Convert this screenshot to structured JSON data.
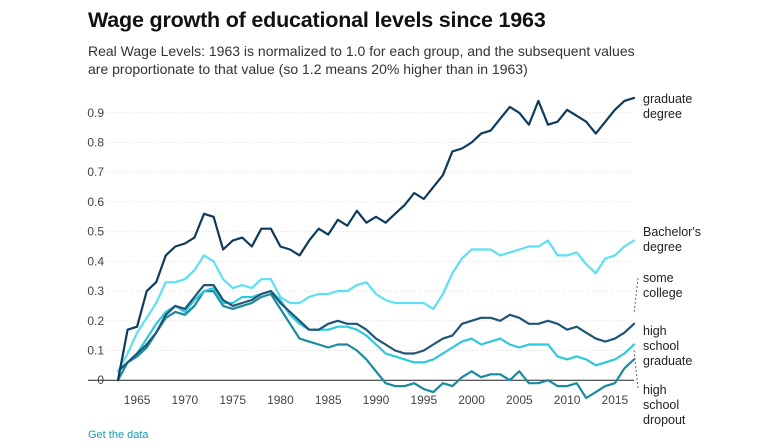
{
  "title": "Wage growth of educational levels since 1963",
  "subtitle": "Real Wage Levels: 1963 is normalized to 1.0 for each group, and the subsequent values are proportionate to that value (so 1.2 means 20% higher than in 1963)",
  "link_text": "Get the data",
  "chart_data": {
    "type": "line",
    "title": "Wage growth of educational levels since 1963",
    "xlabel": "",
    "ylabel": "",
    "xlim": [
      1963,
      2017
    ],
    "ylim": [
      -0.07,
      0.97
    ],
    "xticks": [
      1965,
      1970,
      1975,
      1980,
      1985,
      1990,
      1995,
      2000,
      2005,
      2010,
      2015
    ],
    "yticks": [
      0,
      0.1,
      0.2,
      0.3,
      0.4,
      0.5,
      0.6,
      0.7,
      0.8,
      0.9
    ],
    "ytick_labels": [
      "0",
      "0.1",
      "0.2",
      "0.3",
      "0.4",
      "0.5",
      "0.6",
      "0.7",
      "0.8",
      "0.9"
    ],
    "grid": true,
    "x": [
      1963,
      1964,
      1965,
      1966,
      1967,
      1968,
      1969,
      1970,
      1971,
      1972,
      1973,
      1974,
      1975,
      1976,
      1977,
      1978,
      1979,
      1980,
      1981,
      1982,
      1983,
      1984,
      1985,
      1986,
      1987,
      1988,
      1989,
      1990,
      1991,
      1992,
      1993,
      1994,
      1995,
      1996,
      1997,
      1998,
      1999,
      2000,
      2001,
      2002,
      2003,
      2004,
      2005,
      2006,
      2007,
      2008,
      2009,
      2010,
      2011,
      2012,
      2013,
      2014,
      2015,
      2016,
      2017
    ],
    "series": [
      {
        "name": "graduate degree",
        "label_lines": [
          "graduate",
          "degree"
        ],
        "color": "#0e3a5c",
        "values": [
          0.0,
          0.17,
          0.18,
          0.3,
          0.33,
          0.42,
          0.45,
          0.46,
          0.48,
          0.56,
          0.55,
          0.44,
          0.47,
          0.48,
          0.45,
          0.51,
          0.51,
          0.45,
          0.44,
          0.42,
          0.47,
          0.51,
          0.49,
          0.54,
          0.52,
          0.57,
          0.53,
          0.55,
          0.53,
          0.56,
          0.59,
          0.63,
          0.61,
          0.65,
          0.69,
          0.77,
          0.78,
          0.8,
          0.83,
          0.84,
          0.88,
          0.92,
          0.9,
          0.86,
          0.94,
          0.86,
          0.87,
          0.91,
          0.89,
          0.87,
          0.83,
          0.87,
          0.91,
          0.94,
          0.95
        ]
      },
      {
        "name": "Bachelor's degree",
        "label_lines": [
          "Bachelor's",
          "degree"
        ],
        "color": "#5ce0f2",
        "values": [
          0.03,
          0.09,
          0.16,
          0.21,
          0.26,
          0.33,
          0.33,
          0.34,
          0.37,
          0.42,
          0.4,
          0.34,
          0.31,
          0.32,
          0.31,
          0.34,
          0.34,
          0.28,
          0.26,
          0.26,
          0.28,
          0.29,
          0.29,
          0.3,
          0.3,
          0.32,
          0.33,
          0.29,
          0.27,
          0.26,
          0.26,
          0.26,
          0.26,
          0.24,
          0.29,
          0.36,
          0.41,
          0.44,
          0.44,
          0.44,
          0.42,
          0.43,
          0.44,
          0.45,
          0.45,
          0.47,
          0.42,
          0.42,
          0.43,
          0.39,
          0.36,
          0.41,
          0.42,
          0.45,
          0.47
        ]
      },
      {
        "name": "some college",
        "label_lines": [
          "some",
          "college"
        ],
        "color": "#1f5577",
        "values": [
          0.03,
          0.06,
          0.09,
          0.12,
          0.16,
          0.22,
          0.25,
          0.24,
          0.28,
          0.32,
          0.32,
          0.27,
          0.25,
          0.26,
          0.27,
          0.29,
          0.3,
          0.26,
          0.23,
          0.2,
          0.17,
          0.17,
          0.19,
          0.2,
          0.19,
          0.19,
          0.17,
          0.14,
          0.12,
          0.1,
          0.09,
          0.09,
          0.1,
          0.12,
          0.14,
          0.15,
          0.19,
          0.2,
          0.21,
          0.21,
          0.2,
          0.22,
          0.21,
          0.19,
          0.19,
          0.2,
          0.19,
          0.17,
          0.18,
          0.16,
          0.14,
          0.13,
          0.14,
          0.16,
          0.19
        ]
      },
      {
        "name": "high school graduate",
        "label_lines": [
          "high",
          "school",
          "graduate"
        ],
        "color": "#2ec8dc",
        "values": [
          0.03,
          0.06,
          0.09,
          0.14,
          0.19,
          0.23,
          0.25,
          0.23,
          0.27,
          0.3,
          0.31,
          0.26,
          0.26,
          0.28,
          0.28,
          0.29,
          0.3,
          0.27,
          0.22,
          0.19,
          0.17,
          0.17,
          0.17,
          0.18,
          0.18,
          0.17,
          0.15,
          0.12,
          0.09,
          0.08,
          0.07,
          0.06,
          0.06,
          0.07,
          0.09,
          0.11,
          0.13,
          0.14,
          0.12,
          0.13,
          0.14,
          0.12,
          0.11,
          0.12,
          0.12,
          0.12,
          0.08,
          0.07,
          0.08,
          0.07,
          0.05,
          0.06,
          0.07,
          0.09,
          0.12
        ]
      },
      {
        "name": "high school dropout",
        "label_lines": [
          "high",
          "school",
          "dropout"
        ],
        "color": "#1a8a9e",
        "values": [
          0.0,
          0.06,
          0.08,
          0.11,
          0.16,
          0.21,
          0.23,
          0.22,
          0.25,
          0.3,
          0.3,
          0.25,
          0.24,
          0.25,
          0.26,
          0.28,
          0.29,
          0.24,
          0.19,
          0.14,
          0.13,
          0.12,
          0.11,
          0.12,
          0.12,
          0.1,
          0.07,
          0.03,
          -0.01,
          -0.02,
          -0.02,
          -0.01,
          -0.03,
          -0.04,
          -0.01,
          -0.02,
          0.01,
          0.03,
          0.01,
          0.02,
          0.02,
          0.0,
          0.03,
          -0.01,
          -0.01,
          0.0,
          -0.02,
          -0.02,
          -0.01,
          -0.06,
          -0.04,
          -0.02,
          -0.01,
          0.04,
          0.07
        ]
      }
    ]
  }
}
